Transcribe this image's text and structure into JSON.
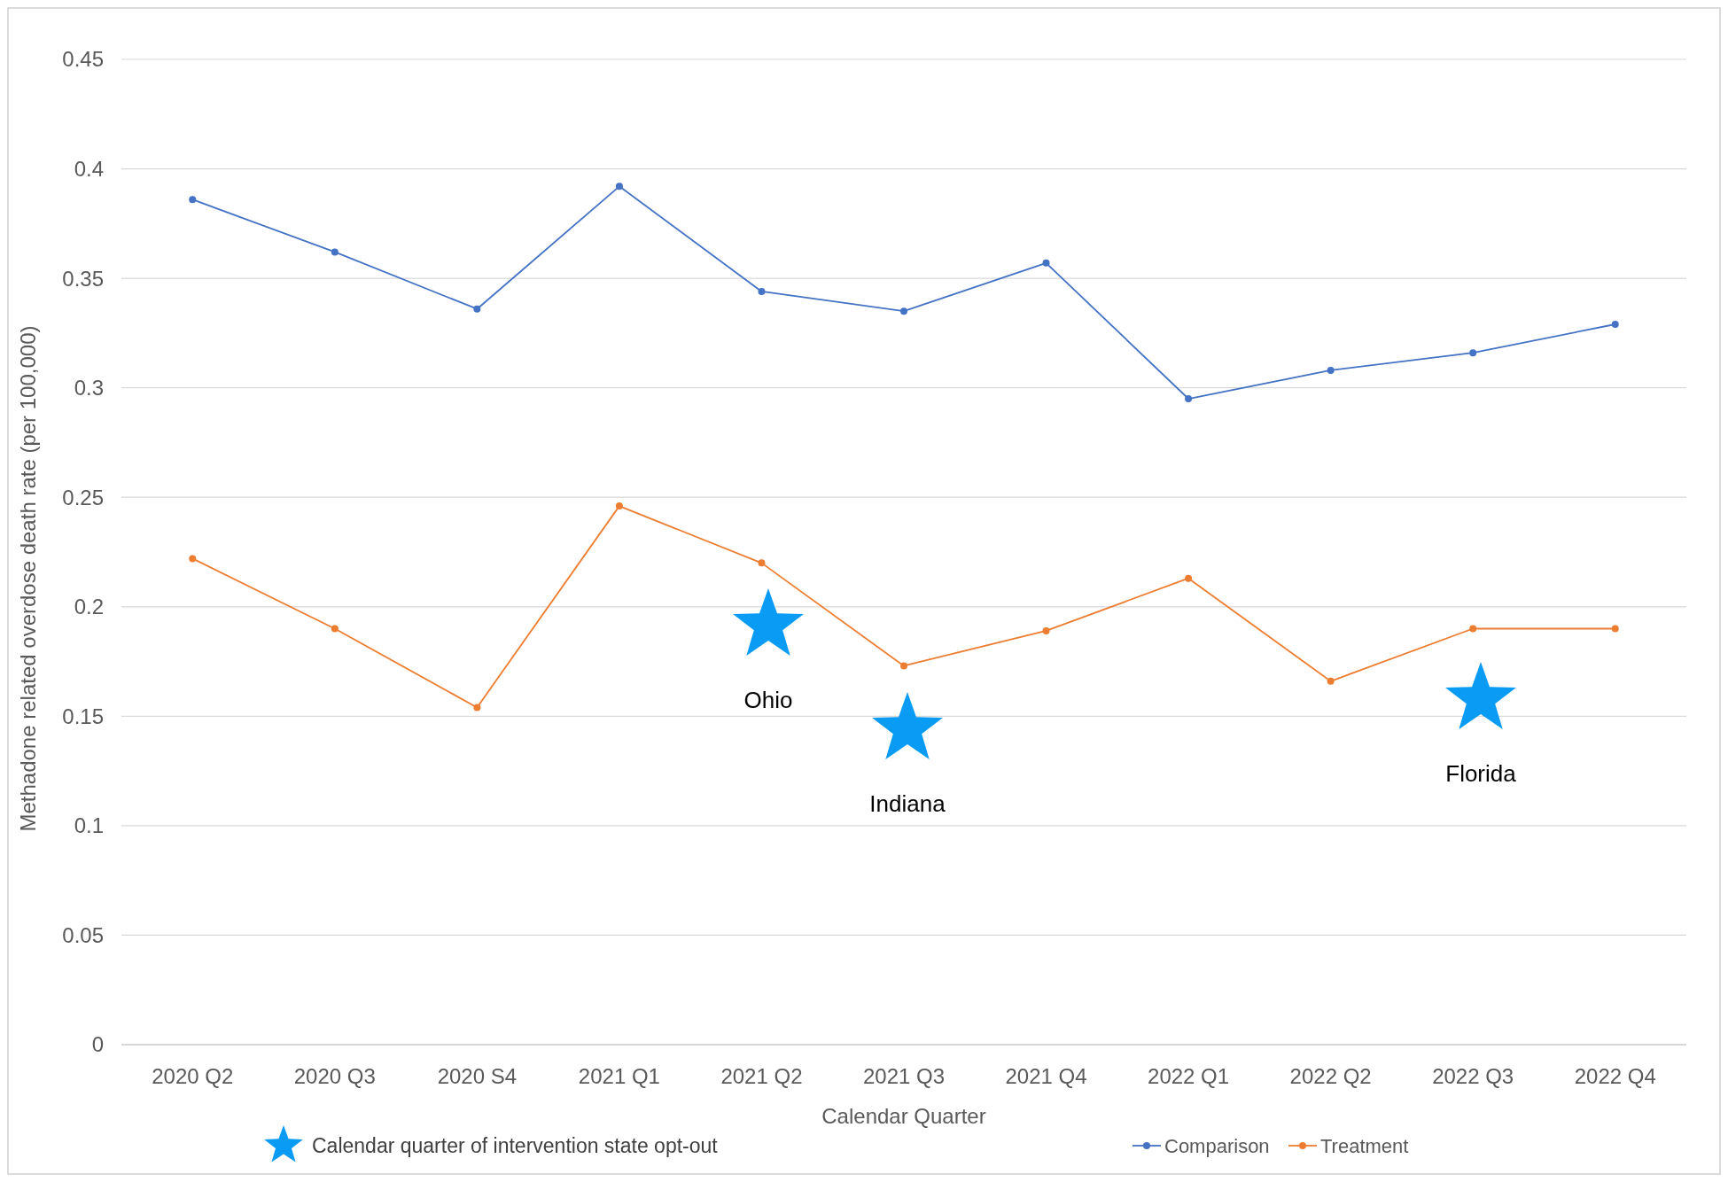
{
  "chart_data": {
    "type": "line",
    "xlabel": "Calendar Quarter",
    "ylabel": "Methadone related overdose death rate (per 100,000)",
    "categories": [
      "2020 Q2",
      "2020 Q3",
      "2020 S4",
      "2021 Q1",
      "2021 Q2",
      "2021 Q3",
      "2021 Q4",
      "2022 Q1",
      "2022 Q2",
      "2022 Q3",
      "2022 Q4"
    ],
    "series": [
      {
        "name": "Comparison",
        "color": "#4472c4",
        "values": [
          0.386,
          0.362,
          0.336,
          0.392,
          0.344,
          0.335,
          0.357,
          0.295,
          0.308,
          0.316,
          0.329
        ]
      },
      {
        "name": "Treatment",
        "color": "#ed7d31",
        "values": [
          0.222,
          0.19,
          0.154,
          0.246,
          0.22,
          0.173,
          0.189,
          0.213,
          0.166,
          0.19,
          0.19
        ]
      }
    ],
    "ylim": [
      0,
      0.45
    ],
    "yticks": [
      0,
      0.05,
      0.1,
      0.15,
      0.2,
      0.25,
      0.3,
      0.35,
      0.4,
      0.45
    ],
    "grid": "y",
    "legend": "bottom right",
    "marker": "circle",
    "line_style": "solid",
    "annotations": [
      "Ohio",
      "Indiana",
      "Florida",
      "Calendar quarter of intervention state opt-out"
    ]
  }
}
